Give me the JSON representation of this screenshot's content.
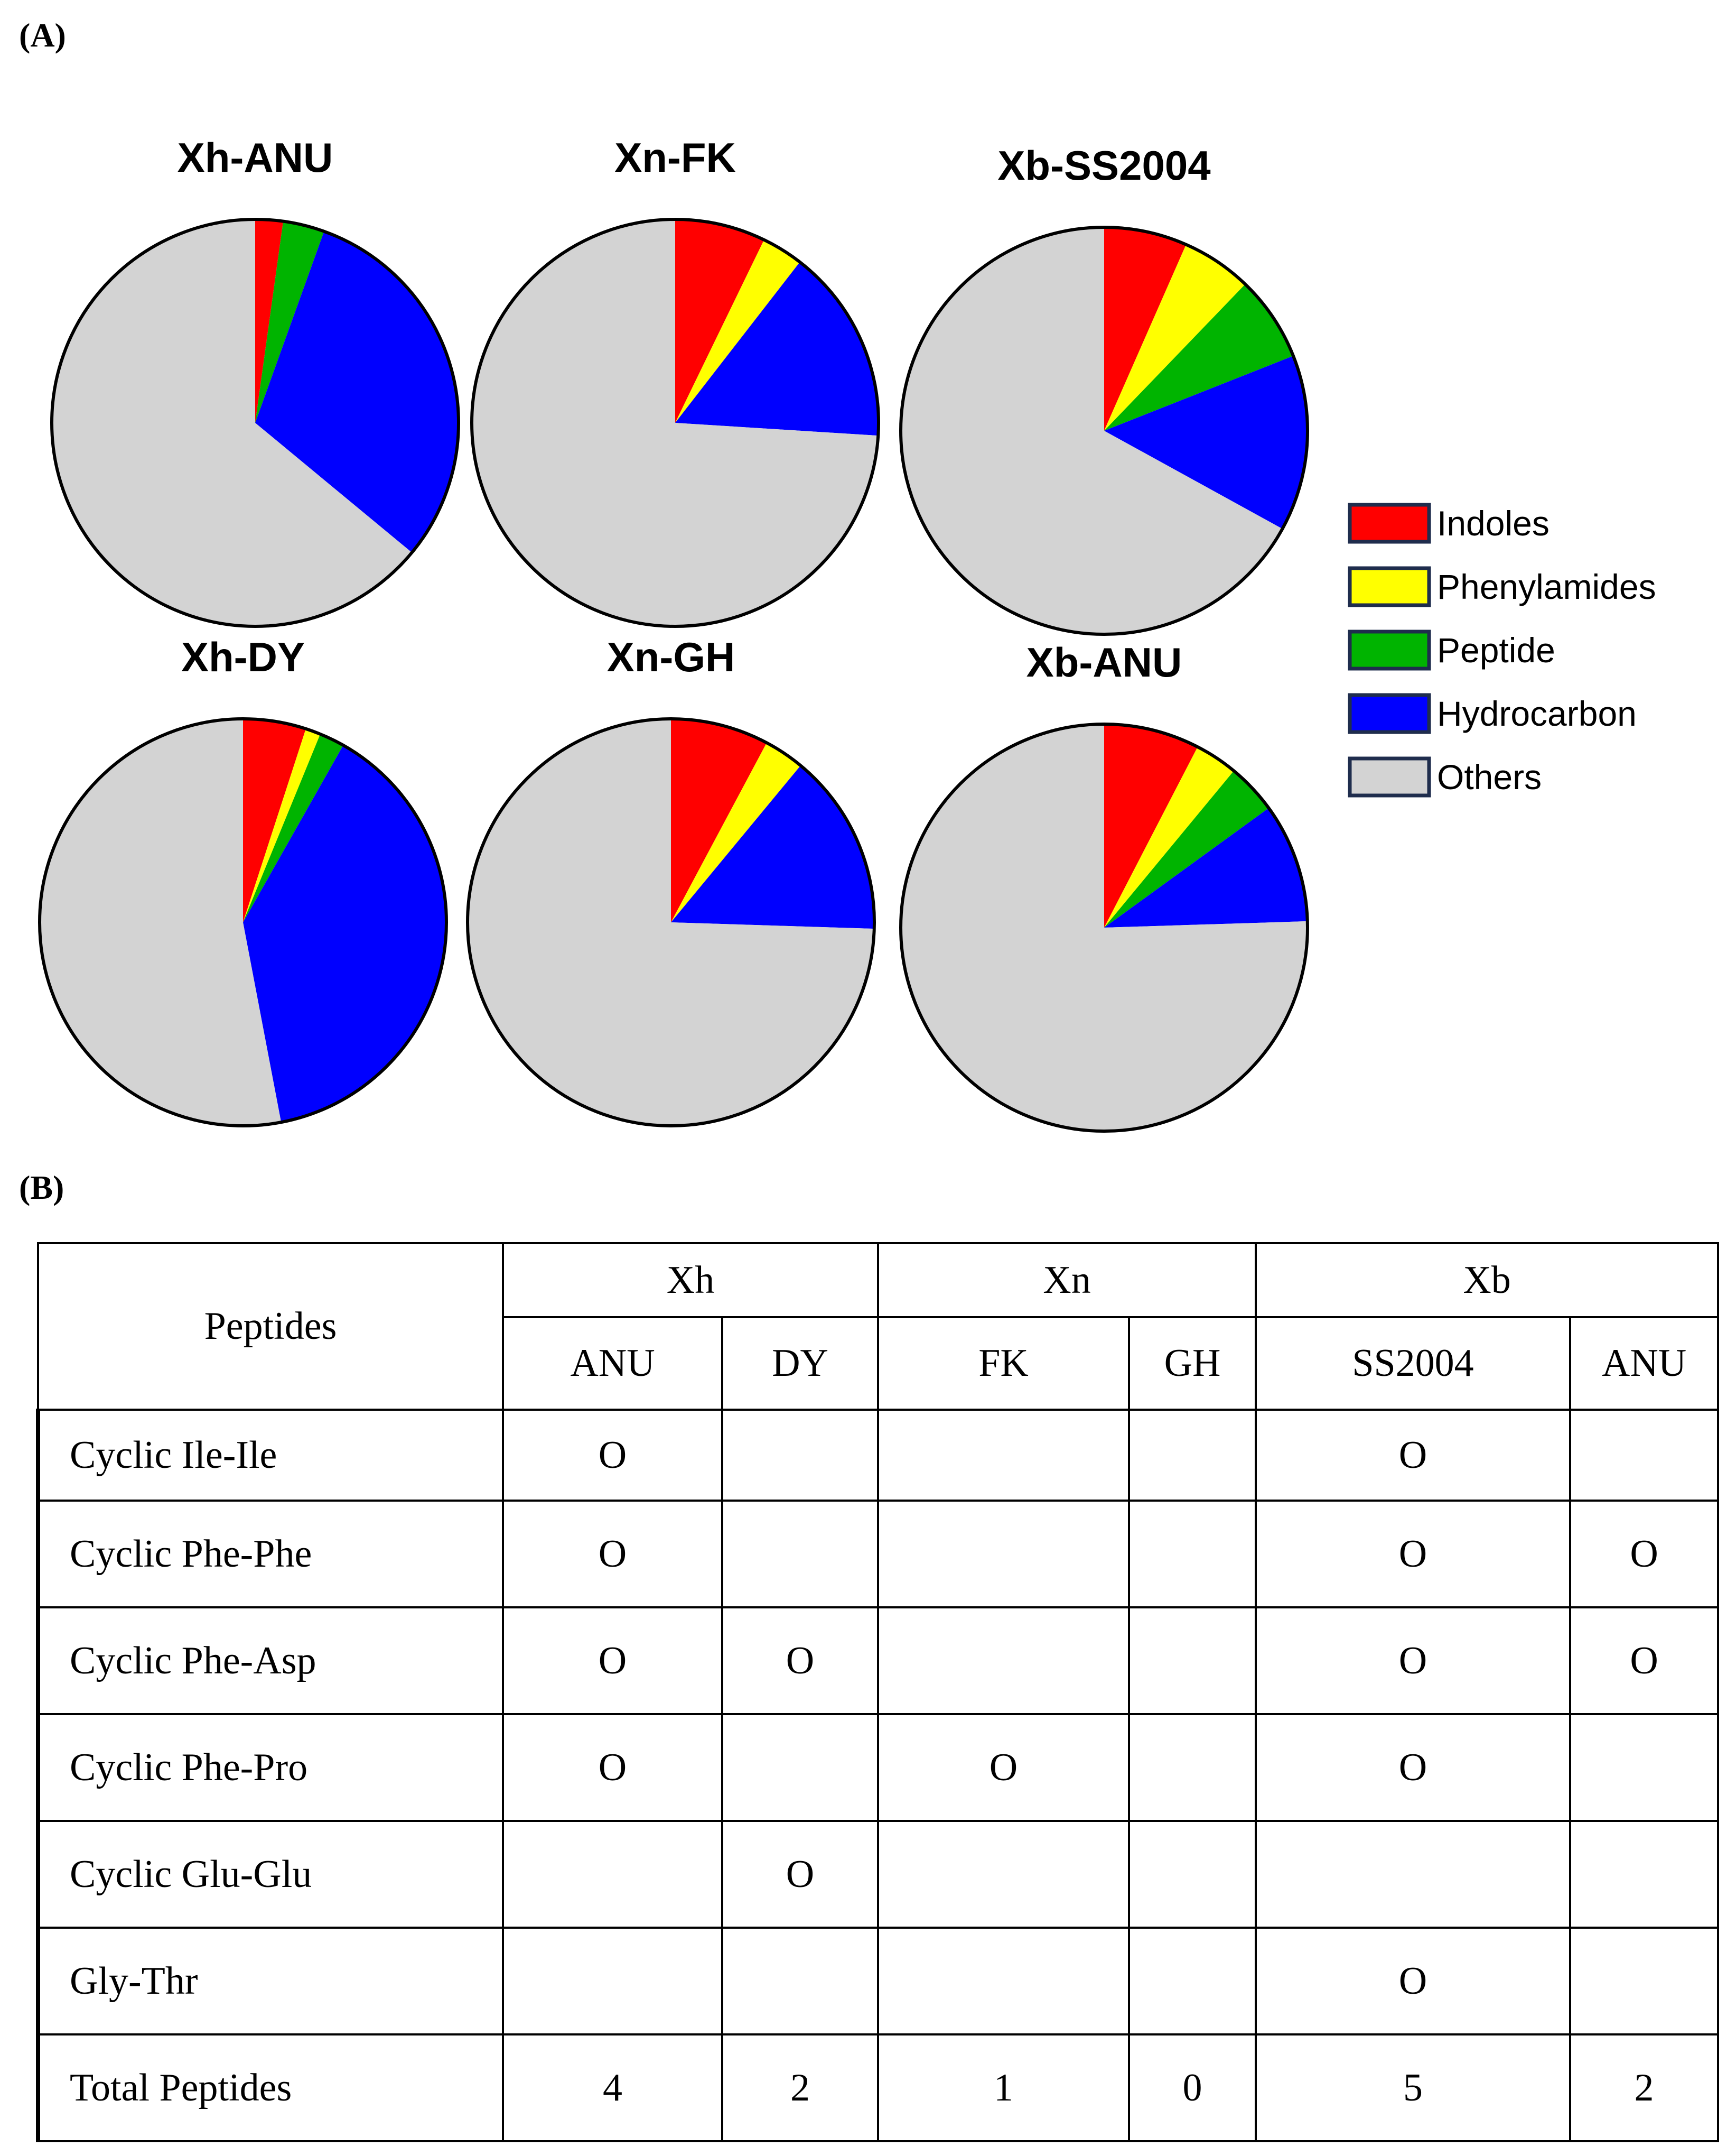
{
  "panel_a_label": "(A)",
  "panel_b_label": "(B)",
  "chart_data": [
    {
      "type": "pie",
      "title": "Xh-ANU",
      "categories": [
        "Indoles",
        "Phenylamides",
        "Peptide",
        "Hydrocarbon",
        "Others"
      ],
      "values": [
        2.2,
        0,
        3.3,
        30.5,
        64.0
      ]
    },
    {
      "type": "pie",
      "title": "Xn-FK",
      "categories": [
        "Indoles",
        "Phenylamides",
        "Peptide",
        "Hydrocarbon",
        "Others"
      ],
      "values": [
        7.2,
        3.3,
        0,
        15.5,
        74.0
      ]
    },
    {
      "type": "pie",
      "title": "Xb-SS2004",
      "categories": [
        "Indoles",
        "Phenylamides",
        "Peptide",
        "Hydrocarbon",
        "Others"
      ],
      "values": [
        6.6,
        5.6,
        6.8,
        14.0,
        67.0
      ]
    },
    {
      "type": "pie",
      "title": "Xh-DY",
      "categories": [
        "Indoles",
        "Phenylamides",
        "Peptide",
        "Hydrocarbon",
        "Others"
      ],
      "values": [
        5.0,
        1.2,
        2.0,
        38.8,
        53.0
      ]
    },
    {
      "type": "pie",
      "title": "Xn-GH",
      "categories": [
        "Indoles",
        "Phenylamides",
        "Peptide",
        "Hydrocarbon",
        "Others"
      ],
      "values": [
        7.8,
        3.2,
        0,
        14.5,
        74.5
      ]
    },
    {
      "type": "pie",
      "title": "Xb-ANU",
      "categories": [
        "Indoles",
        "Phenylamides",
        "Peptide",
        "Hydrocarbon",
        "Others"
      ],
      "values": [
        7.6,
        3.4,
        4.0,
        9.5,
        75.5
      ]
    }
  ],
  "legend": {
    "placement": "right",
    "items": [
      {
        "label": "Indoles",
        "color": "#ff0000"
      },
      {
        "label": "Phenylamides",
        "color": "#ffff00"
      },
      {
        "label": "Peptide",
        "color": "#00b400"
      },
      {
        "label": "Hydrocarbon",
        "color": "#0000ff"
      },
      {
        "label": "Others",
        "color": "#d3d3d3"
      }
    ]
  },
  "table": {
    "corner_header": "Peptides",
    "groups": [
      {
        "name": "Xh",
        "strains": [
          "ANU",
          "DY"
        ]
      },
      {
        "name": "Xn",
        "strains": [
          "FK",
          "GH"
        ]
      },
      {
        "name": "Xb",
        "strains": [
          "SS2004",
          "ANU"
        ]
      }
    ],
    "rows": [
      {
        "name": "Cyclic Ile-Ile",
        "cells": [
          "O",
          "",
          "",
          "",
          "O",
          ""
        ]
      },
      {
        "name": "Cyclic Phe-Phe",
        "cells": [
          "O",
          "",
          "",
          "",
          "O",
          "O"
        ]
      },
      {
        "name": "Cyclic Phe-Asp",
        "cells": [
          "O",
          "O",
          "",
          "",
          "O",
          "O"
        ]
      },
      {
        "name": "Cyclic Phe-Pro",
        "cells": [
          "O",
          "",
          "O",
          "",
          "O",
          ""
        ]
      },
      {
        "name": "Cyclic Glu-Glu",
        "cells": [
          "",
          "O",
          "",
          "",
          "",
          ""
        ]
      },
      {
        "name": "Gly-Thr",
        "cells": [
          "",
          "",
          "",
          "",
          "O",
          ""
        ]
      },
      {
        "name": "Total Peptides",
        "cells": [
          "4",
          "2",
          "1",
          "0",
          "5",
          "2"
        ]
      }
    ]
  }
}
